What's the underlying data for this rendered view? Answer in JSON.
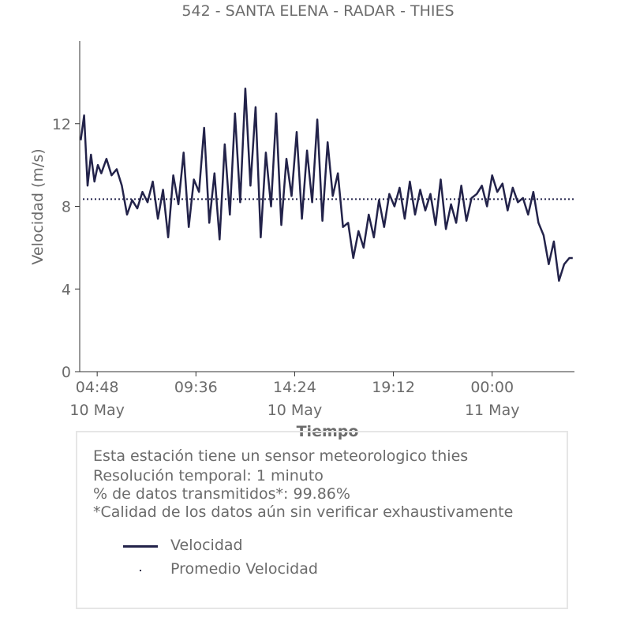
{
  "chart_data": {
    "type": "line",
    "title": "542 - SANTA ELENA - RADAR - THIES",
    "xlabel": "Tiempo",
    "ylabel": "Velocidad (m/s)",
    "ylim": [
      0,
      16
    ],
    "yticks": [
      "0",
      "4",
      "8",
      "12"
    ],
    "xticks": [
      {
        "time": "04:48",
        "date": "10 May"
      },
      {
        "time": "09:36",
        "date": ""
      },
      {
        "time": "14:24",
        "date": "10 May"
      },
      {
        "time": "19:12",
        "date": ""
      },
      {
        "time": "00:00",
        "date": "11 May"
      }
    ],
    "xlim": [
      "2024-05-10T03:57",
      "2024-05-11T04:00"
    ],
    "legend_position": "bottom",
    "grid": false,
    "series": [
      {
        "name": "Velocidad",
        "color": "#23234a",
        "style": "solid",
        "x": [
          "2024-05-10T04:00",
          "2024-05-10T04:10",
          "2024-05-10T04:20",
          "2024-05-10T04:30",
          "2024-05-10T04:40",
          "2024-05-10T04:50",
          "2024-05-10T05:00",
          "2024-05-10T05:15",
          "2024-05-10T05:30",
          "2024-05-10T05:45",
          "2024-05-10T06:00",
          "2024-05-10T06:15",
          "2024-05-10T06:30",
          "2024-05-10T06:45",
          "2024-05-10T07:00",
          "2024-05-10T07:15",
          "2024-05-10T07:30",
          "2024-05-10T07:45",
          "2024-05-10T08:00",
          "2024-05-10T08:15",
          "2024-05-10T08:30",
          "2024-05-10T08:45",
          "2024-05-10T09:00",
          "2024-05-10T09:15",
          "2024-05-10T09:30",
          "2024-05-10T09:45",
          "2024-05-10T10:00",
          "2024-05-10T10:15",
          "2024-05-10T10:30",
          "2024-05-10T10:45",
          "2024-05-10T11:00",
          "2024-05-10T11:15",
          "2024-05-10T11:30",
          "2024-05-10T11:45",
          "2024-05-10T12:00",
          "2024-05-10T12:15",
          "2024-05-10T12:30",
          "2024-05-10T12:45",
          "2024-05-10T13:00",
          "2024-05-10T13:15",
          "2024-05-10T13:30",
          "2024-05-10T13:45",
          "2024-05-10T14:00",
          "2024-05-10T14:15",
          "2024-05-10T14:30",
          "2024-05-10T14:45",
          "2024-05-10T15:00",
          "2024-05-10T15:15",
          "2024-05-10T15:30",
          "2024-05-10T15:45",
          "2024-05-10T16:00",
          "2024-05-10T16:15",
          "2024-05-10T16:30",
          "2024-05-10T16:45",
          "2024-05-10T17:00",
          "2024-05-10T17:15",
          "2024-05-10T17:30",
          "2024-05-10T17:45",
          "2024-05-10T18:00",
          "2024-05-10T18:15",
          "2024-05-10T18:30",
          "2024-05-10T18:45",
          "2024-05-10T19:00",
          "2024-05-10T19:15",
          "2024-05-10T19:30",
          "2024-05-10T19:45",
          "2024-05-10T20:00",
          "2024-05-10T20:15",
          "2024-05-10T20:30",
          "2024-05-10T20:45",
          "2024-05-10T21:00",
          "2024-05-10T21:15",
          "2024-05-10T21:30",
          "2024-05-10T21:45",
          "2024-05-10T22:00",
          "2024-05-10T22:15",
          "2024-05-10T22:30",
          "2024-05-10T22:45",
          "2024-05-10T23:00",
          "2024-05-10T23:15",
          "2024-05-10T23:30",
          "2024-05-10T23:45",
          "2024-05-11T00:00",
          "2024-05-11T00:15",
          "2024-05-11T00:30",
          "2024-05-11T00:45",
          "2024-05-11T01:00",
          "2024-05-11T01:15",
          "2024-05-11T01:30",
          "2024-05-11T01:45",
          "2024-05-11T02:00",
          "2024-05-11T02:15",
          "2024-05-11T02:30",
          "2024-05-11T02:45",
          "2024-05-11T03:00",
          "2024-05-11T03:15",
          "2024-05-11T03:30",
          "2024-05-11T03:45",
          "2024-05-11T03:55"
        ],
        "y": [
          11.2,
          12.4,
          9.0,
          10.5,
          9.2,
          10.0,
          9.6,
          10.3,
          9.5,
          9.8,
          9.0,
          7.6,
          8.3,
          7.9,
          8.7,
          8.2,
          9.2,
          7.4,
          8.8,
          6.5,
          9.5,
          8.1,
          10.6,
          7.0,
          9.3,
          8.7,
          11.8,
          7.2,
          9.6,
          6.4,
          11.0,
          7.6,
          12.5,
          8.2,
          13.7,
          9.0,
          12.8,
          6.5,
          10.6,
          8.0,
          12.5,
          7.1,
          10.3,
          8.5,
          11.6,
          7.4,
          10.7,
          8.2,
          12.2,
          7.3,
          11.1,
          8.5,
          9.6,
          7.0,
          7.2,
          5.5,
          6.8,
          6.0,
          7.6,
          6.5,
          8.3,
          7.0,
          8.6,
          8.0,
          8.9,
          7.4,
          9.2,
          7.6,
          8.8,
          7.8,
          8.6,
          7.1,
          9.3,
          6.9,
          8.1,
          7.2,
          9.0,
          7.3,
          8.4,
          8.6,
          9.0,
          8.0,
          9.5,
          8.7,
          9.1,
          7.8,
          8.9,
          8.2,
          8.4,
          7.6,
          8.7,
          7.2,
          6.6,
          5.2,
          6.3,
          4.4,
          5.2,
          5.5,
          5.5
        ]
      },
      {
        "name": "Promedio Velocidad",
        "color": "#23234a",
        "style": "dotted",
        "value": 8.35
      }
    ]
  },
  "info": {
    "line1": "Esta estación tiene un sensor meteorologico thies",
    "line2": "Resolución temporal: 1 minuto",
    "line3": "% de datos transmitidos*: 99.86%",
    "line4": "*Calidad de los datos aún sin verificar exhaustivamente"
  }
}
